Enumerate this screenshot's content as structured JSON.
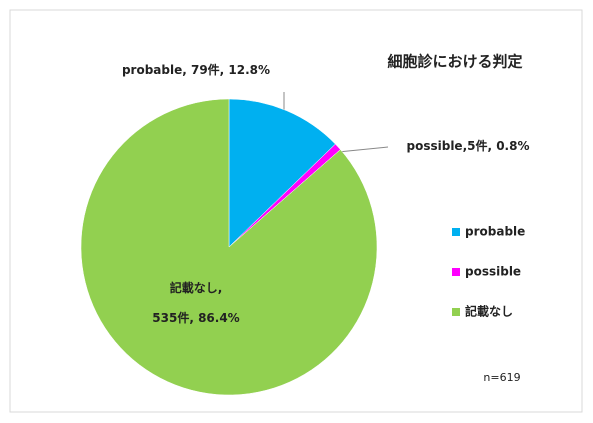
{
  "chart_data": {
    "type": "pie",
    "title": "細胞診における判定",
    "categories": [
      "probable",
      "possible",
      "記載なし"
    ],
    "values": [
      79,
      5,
      535
    ],
    "value_labels": [
      "probable, 79件, 12.8%",
      "possible,5件, 0.8%",
      "記載なし,\n535件, 86.4%"
    ],
    "colors": [
      "#00b0f0",
      "#ff00ff",
      "#92d050"
    ],
    "legend": "right",
    "annotation": "n=619"
  }
}
